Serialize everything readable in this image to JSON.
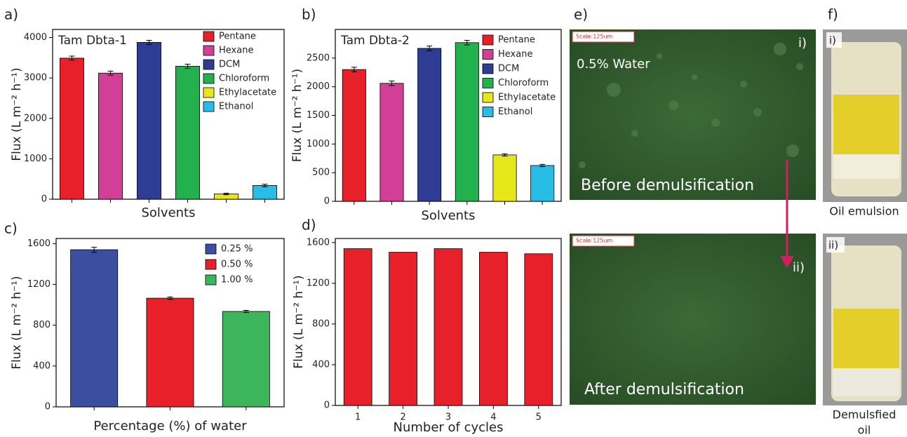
{
  "panel_labels": [
    "a)",
    "b)",
    "c)",
    "d)",
    "e)",
    "f)"
  ],
  "chart_data": [
    {
      "type": "bar",
      "title": "Tam Dbta-1",
      "ylabel": "Flux (L m⁻² h⁻¹)",
      "xlabel": "Solvents",
      "categories": [
        "Pentane",
        "Hexane",
        "DCM",
        "Chloroform",
        "Ethylacetate",
        "Ethanol"
      ],
      "colors": [
        "#e8202a",
        "#d23f96",
        "#2f3c93",
        "#23b14d",
        "#e6e619",
        "#27bde6"
      ],
      "values": [
        3490,
        3120,
        3880,
        3290,
        130,
        340
      ],
      "errors": [
        50,
        50,
        50,
        50,
        20,
        30
      ],
      "ylim": [
        0,
        4200
      ],
      "yticks": [
        0,
        1000,
        2000,
        3000,
        4000
      ],
      "legend": "upper right",
      "category_labels": false
    },
    {
      "type": "bar",
      "title": "Tam Dbta-2",
      "ylabel": "Flux (L m⁻² h⁻¹)",
      "xlabel": "Solvents",
      "categories": [
        "Pentane",
        "Hexane",
        "DCM",
        "Chloroform",
        "Ethylacetate",
        "Ethanol"
      ],
      "colors": [
        "#e8202a",
        "#d23f96",
        "#2f3c93",
        "#23b14d",
        "#e6e619",
        "#27bde6"
      ],
      "values": [
        2300,
        2060,
        2670,
        2770,
        810,
        625
      ],
      "errors": [
        40,
        40,
        40,
        40,
        20,
        20
      ],
      "ylim": [
        0,
        3000
      ],
      "yticks": [
        0,
        500,
        1000,
        1500,
        2000,
        2500
      ],
      "legend": "upper right",
      "category_labels": false
    },
    {
      "type": "bar",
      "ylabel": "Flux (L m⁻² h⁻¹)",
      "xlabel": "Percentage (%) of water",
      "categories": [
        "0.25 %",
        "0.50 %",
        "1.00 %"
      ],
      "colors": [
        "#3a4fa0",
        "#e8202a",
        "#3db55a"
      ],
      "values": [
        1540,
        1065,
        935
      ],
      "errors": [
        25,
        12,
        10
      ],
      "ylim": [
        0,
        1650
      ],
      "yticks": [
        0,
        400,
        800,
        1200,
        1600
      ],
      "legend": "upper right",
      "category_labels": false
    },
    {
      "type": "bar",
      "ylabel": "Flux (L m⁻² h⁻¹)",
      "xlabel": "Number of cycles",
      "categories": [
        "1",
        "2",
        "3",
        "4",
        "5"
      ],
      "color": "#e8202a",
      "values": [
        1540,
        1505,
        1540,
        1505,
        1490
      ],
      "ylim": [
        0,
        1640
      ],
      "yticks": [
        0,
        400,
        800,
        1200,
        1600
      ],
      "category_labels": true
    }
  ],
  "micrographs": [
    {
      "scale": "Scale:125um",
      "label": "i)",
      "note": "0.5% Water",
      "caption": "Before demulsification"
    },
    {
      "scale": "Scale:125um",
      "label": "ii)",
      "caption": "After demulsification"
    }
  ],
  "photos": [
    {
      "label": "i)",
      "caption": [
        "Oil emulsion"
      ]
    },
    {
      "label": "ii)",
      "caption": [
        "Demulsfied",
        "oil"
      ]
    }
  ]
}
